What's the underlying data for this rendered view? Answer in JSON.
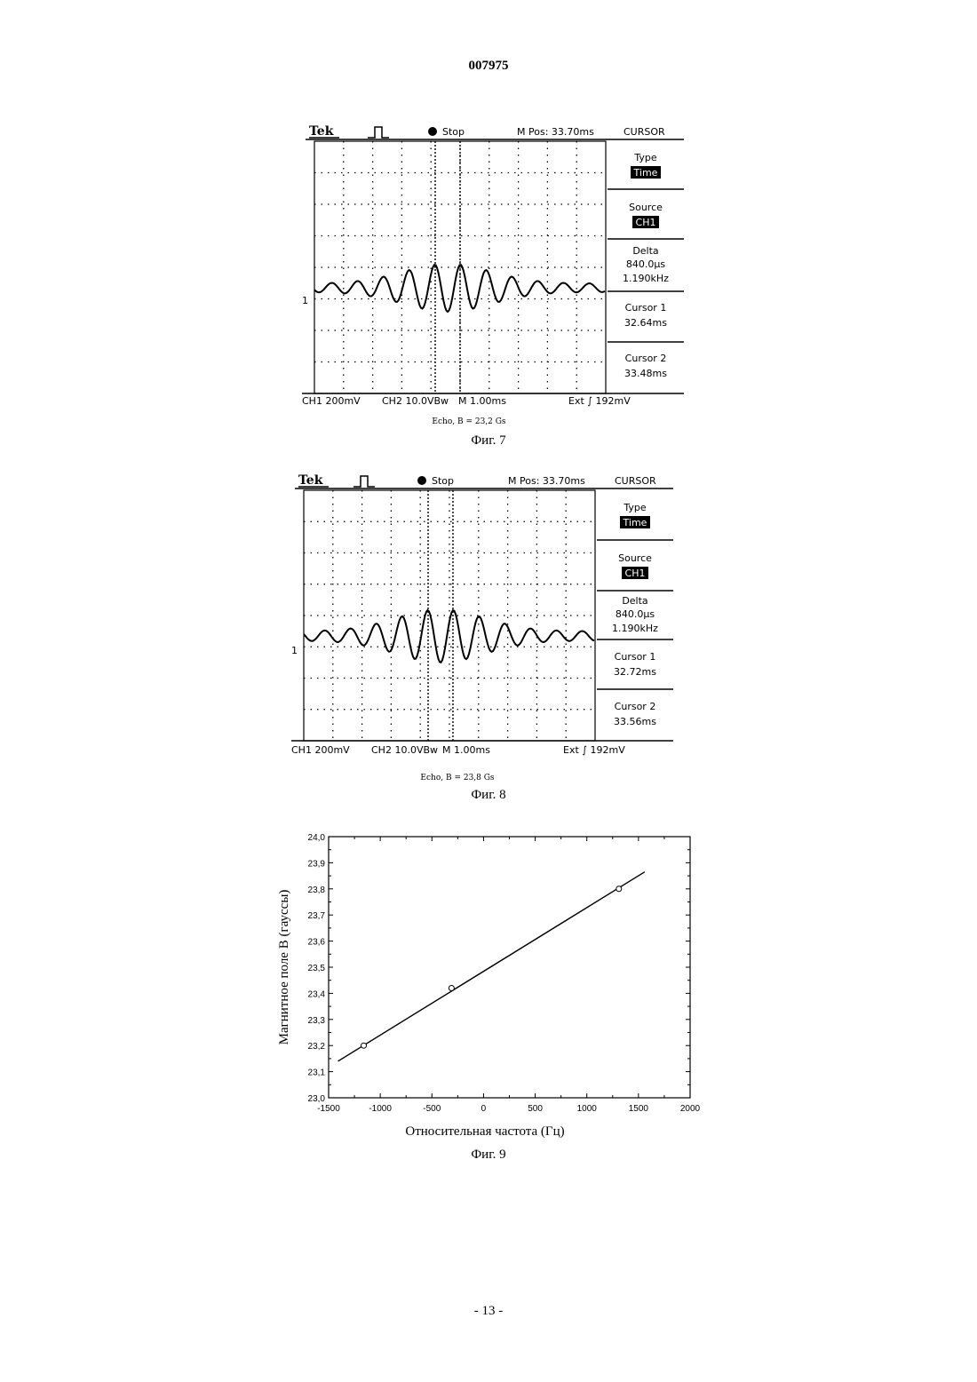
{
  "header": {
    "doc_number": "007975"
  },
  "footer": {
    "page_number": "- 13 -"
  },
  "scopes": [
    {
      "id": "fig7",
      "brand": "Tek",
      "run_state": "Stop",
      "m_pos": "M Pos: 33.70ms",
      "menu_title": "CURSOR",
      "menu": [
        {
          "label": "Type",
          "value": "Time"
        },
        {
          "label": "Source",
          "value": "CH1"
        },
        {
          "label": "Delta",
          "value": "840.0µs",
          "value2": "1.190kHz"
        },
        {
          "label": "Cursor 1",
          "value": "32.64ms"
        },
        {
          "label": "Cursor 2",
          "value": "33.48ms"
        }
      ],
      "bottom": {
        "ch1": "CH1  200mV",
        "ch2": "CH2  10.0VBw",
        "time": "M 1.00ms",
        "trig": "Ext  ∫  192mV"
      },
      "ch_marker": "1",
      "caption_small": "Echo, B = 23,2 Gs",
      "caption": "Фиг. 7"
    },
    {
      "id": "fig8",
      "brand": "Tek",
      "run_state": "Stop",
      "m_pos": "M Pos: 33.70ms",
      "menu_title": "CURSOR",
      "menu": [
        {
          "label": "Type",
          "value": "Time"
        },
        {
          "label": "Source",
          "value": "CH1"
        },
        {
          "label": "Delta",
          "value": "840.0µs",
          "value2": "1.190kHz"
        },
        {
          "label": "Cursor 1",
          "value": "32.72ms"
        },
        {
          "label": "Cursor 2",
          "value": "33.56ms"
        }
      ],
      "bottom": {
        "ch1": "CH1  200mV",
        "ch2": "CH2  10.0VBw",
        "time": "M 1.00ms",
        "trig": "Ext  ∫  192mV"
      },
      "ch_marker": "1",
      "caption_small": "Echo, B = 23,8 Gs",
      "caption": "Фиг. 8"
    }
  ],
  "chart_data": {
    "type": "scatter",
    "caption": "Фиг. 9",
    "xlabel": "Относительная частота (Гц)",
    "ylabel": "Магнитное поле В (гауссы)",
    "xlim": [
      -1500,
      2000
    ],
    "ylim": [
      23.0,
      24.0
    ],
    "xticks": [
      "-1500",
      "-1000",
      "-500",
      "0",
      "500",
      "1000",
      "1500",
      "2000"
    ],
    "yticks": [
      "23,0",
      "23,1",
      "23,2",
      "23,3",
      "23,4",
      "23,5",
      "23,6",
      "23,7",
      "23,8",
      "23,9",
      "24,0"
    ],
    "points": [
      {
        "x": -1160,
        "y": 23.2
      },
      {
        "x": -310,
        "y": 23.42
      },
      {
        "x": 1310,
        "y": 23.8
      }
    ],
    "fit_line": {
      "x": [
        -1410,
        1560
      ],
      "y": [
        23.14,
        23.865
      ]
    },
    "grid": false
  }
}
